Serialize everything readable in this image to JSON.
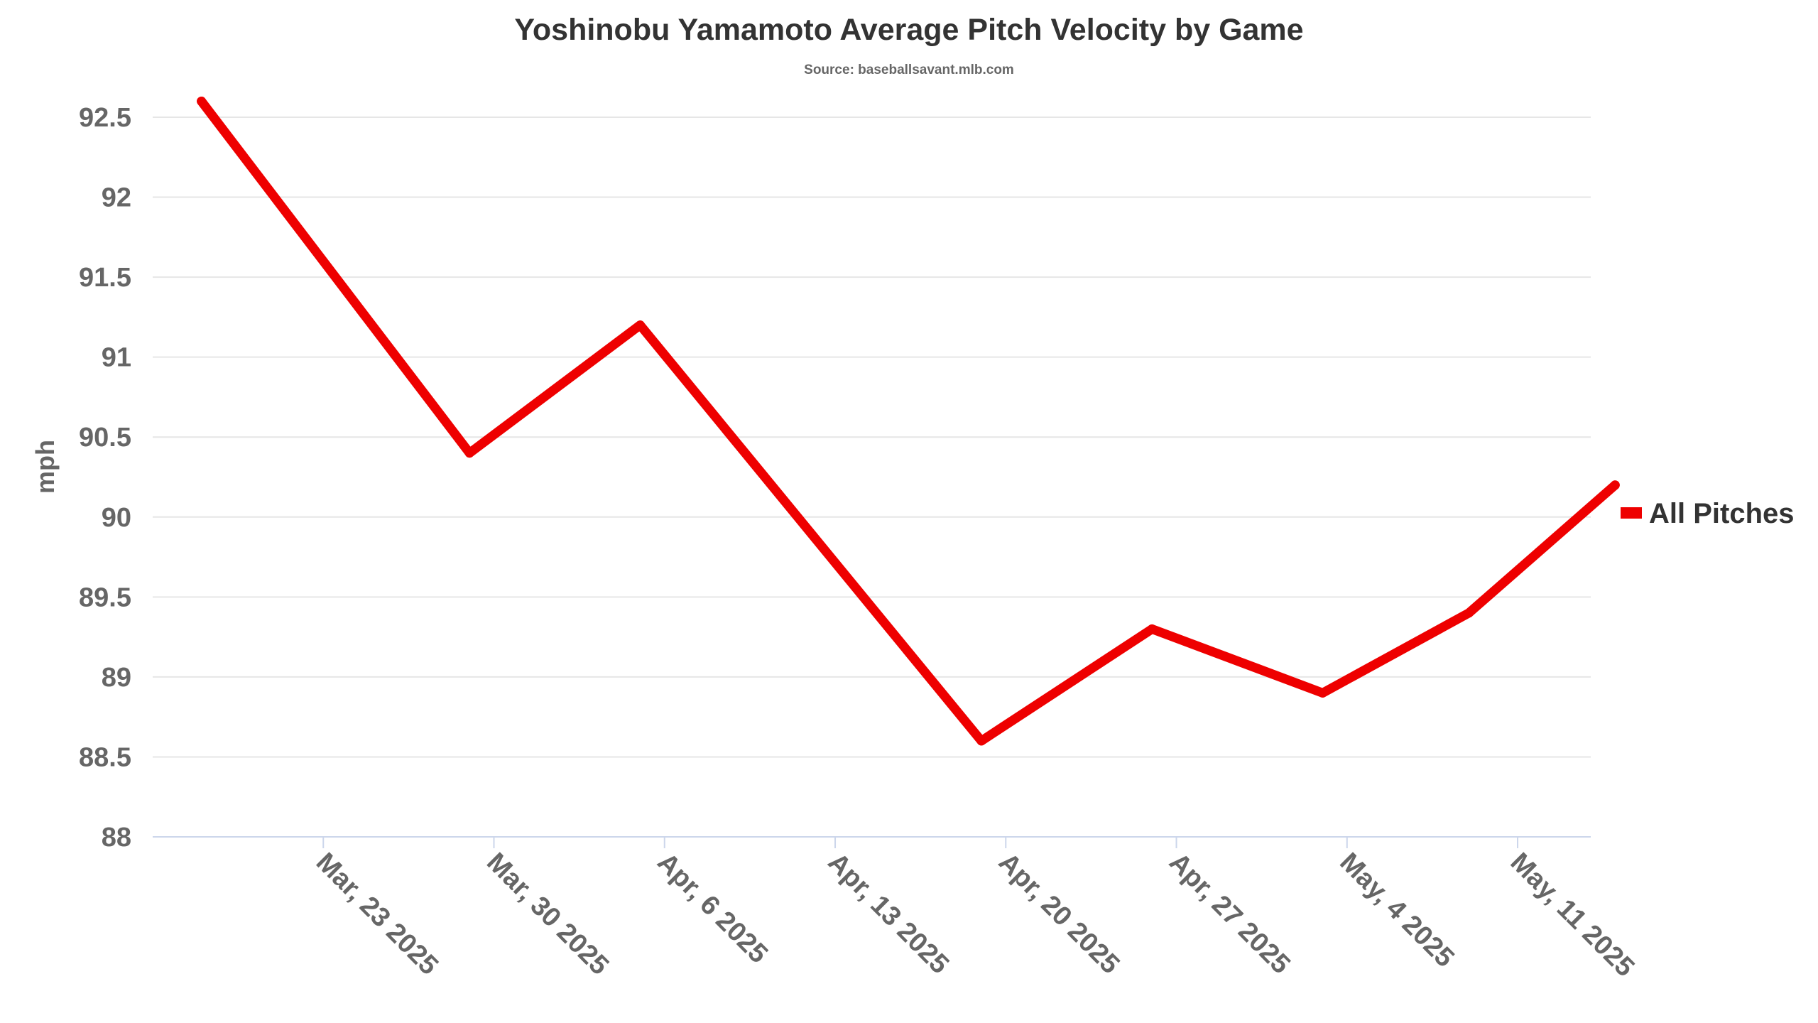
{
  "chart_data": {
    "type": "line",
    "title": "Yoshinobu Yamamoto Average Pitch Velocity by Game",
    "subtitle": "Source: baseballsavant.mlb.com",
    "xlabel": "",
    "ylabel": "mph",
    "ylim": [
      88,
      92.5
    ],
    "yticks": [
      "88",
      "88.5",
      "89",
      "89.5",
      "90",
      "90.5",
      "91",
      "91.5",
      "92",
      "92.5"
    ],
    "xticks": [
      "Mar, 23 2025",
      "Mar, 30 2025",
      "Apr, 6 2025",
      "Apr, 13 2025",
      "Apr, 20 2025",
      "Apr, 27 2025",
      "May, 4 2025",
      "May, 11 2025"
    ],
    "xtick_dates": [
      "2025-03-23",
      "2025-03-30",
      "2025-04-06",
      "2025-04-13",
      "2025-04-20",
      "2025-04-27",
      "2025-05-04",
      "2025-05-11"
    ],
    "xlim": [
      "2025-03-16",
      "2025-05-14"
    ],
    "grid": true,
    "legend_position": "right",
    "series": [
      {
        "name": "All Pitches",
        "color": "#ee0000",
        "points": [
          {
            "x": "2025-03-18",
            "y": 92.6
          },
          {
            "x": "2025-03-29",
            "y": 90.4
          },
          {
            "x": "2025-04-05",
            "y": 91.2
          },
          {
            "x": "2025-04-19",
            "y": 88.6
          },
          {
            "x": "2025-04-26",
            "y": 89.3
          },
          {
            "x": "2025-05-03",
            "y": 88.9
          },
          {
            "x": "2025-05-09",
            "y": 89.4
          },
          {
            "x": "2025-05-15",
            "y": 90.2
          }
        ]
      }
    ]
  }
}
